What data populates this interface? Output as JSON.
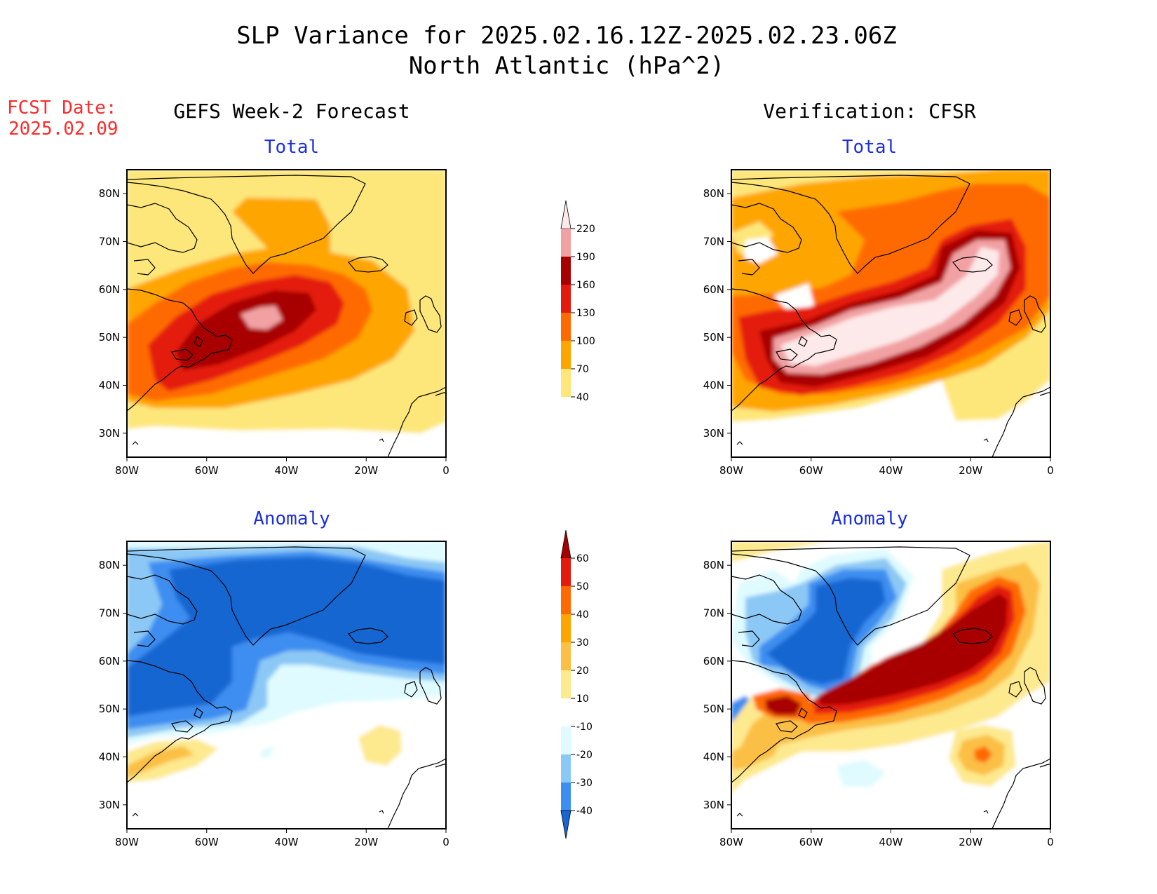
{
  "title": {
    "line1": "SLP Variance for 2025.02.16.12Z-2025.02.23.06Z",
    "line2": "North Atlantic (hPa^2)"
  },
  "forecast_stamp": {
    "line1": "FCST Date:",
    "line2": "2025.02.09"
  },
  "columns": {
    "left": "GEFS Week-2 Forecast",
    "right": "Verification: CFSR"
  },
  "panels": {
    "gefs_total": {
      "subtitle": "Total"
    },
    "gefs_anomaly": {
      "subtitle": "Anomaly"
    },
    "cfsr_total": {
      "subtitle": "Total"
    },
    "cfsr_anomaly": {
      "subtitle": "Anomaly"
    }
  },
  "axes": {
    "lon_ticks": [
      "80W",
      "60W",
      "40W",
      "20W",
      "0"
    ],
    "lat_ticks": [
      "80N",
      "70N",
      "60N",
      "50N",
      "40N",
      "30N"
    ]
  },
  "colorbars": {
    "total": {
      "labels": [
        "220",
        "190",
        "160",
        "130",
        "100",
        "70",
        "40"
      ],
      "colors": [
        "#fde9e9",
        "#f2a1a3",
        "#a80000",
        "#e41a0c",
        "#ff6a00",
        "#ffa500",
        "#fde77a"
      ]
    },
    "anomaly": {
      "labels": [
        "60",
        "50",
        "40",
        "30",
        "20",
        "10",
        "-10",
        "-20",
        "-30",
        "-40"
      ],
      "colors": [
        "#a80000",
        "#e41a0c",
        "#ff6a00",
        "#ffa500",
        "#fbbf44",
        "#fde98e",
        "#ffffff",
        "#dffbff",
        "#8cc8f5",
        "#3d8ef0",
        "#1866d2"
      ]
    }
  }
}
